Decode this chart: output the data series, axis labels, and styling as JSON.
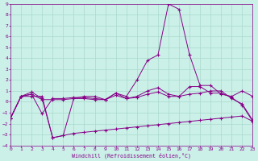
{
  "xlabel": "Windchill (Refroidissement éolien,°C)",
  "background_color": "#caf0e8",
  "grid_color": "#aad8cc",
  "line_color": "#880088",
  "xlim": [
    0,
    23
  ],
  "ylim": [
    -4,
    9
  ],
  "xticks": [
    0,
    1,
    2,
    3,
    4,
    5,
    6,
    7,
    8,
    9,
    10,
    11,
    12,
    13,
    14,
    15,
    16,
    17,
    18,
    19,
    20,
    21,
    22,
    23
  ],
  "yticks": [
    -4,
    -3,
    -2,
    -1,
    0,
    1,
    2,
    3,
    4,
    5,
    6,
    7,
    8,
    9
  ],
  "line1_y": [
    -1.5,
    0.5,
    0.5,
    0.5,
    -3.3,
    -3.1,
    -2.9,
    -2.8,
    -2.7,
    -2.6,
    -2.5,
    -2.4,
    -2.3,
    -2.2,
    -2.1,
    -2.0,
    -1.9,
    -1.8,
    -1.7,
    -1.6,
    -1.5,
    -1.4,
    -1.3,
    -1.8
  ],
  "line2_y": [
    -1.5,
    0.5,
    0.7,
    0.2,
    0.2,
    0.2,
    0.3,
    0.3,
    0.2,
    0.2,
    0.6,
    0.3,
    0.4,
    0.7,
    0.9,
    0.5,
    0.5,
    1.4,
    1.4,
    0.8,
    0.8,
    0.4,
    -0.3,
    -1.8
  ],
  "line3_y": [
    -1.5,
    0.5,
    0.9,
    0.3,
    -3.3,
    -3.1,
    0.3,
    0.5,
    0.5,
    0.2,
    0.8,
    0.5,
    2.0,
    3.8,
    4.3,
    9.0,
    8.5,
    4.3,
    1.5,
    1.5,
    0.7,
    0.5,
    1.0,
    0.5
  ],
  "line4_y": [
    -1.5,
    0.5,
    0.7,
    -1.1,
    0.3,
    0.3,
    0.4,
    0.4,
    0.3,
    0.2,
    0.8,
    0.3,
    0.5,
    1.0,
    1.3,
    0.7,
    0.5,
    0.7,
    0.8,
    1.0,
    1.0,
    0.3,
    -0.2,
    -1.7
  ]
}
